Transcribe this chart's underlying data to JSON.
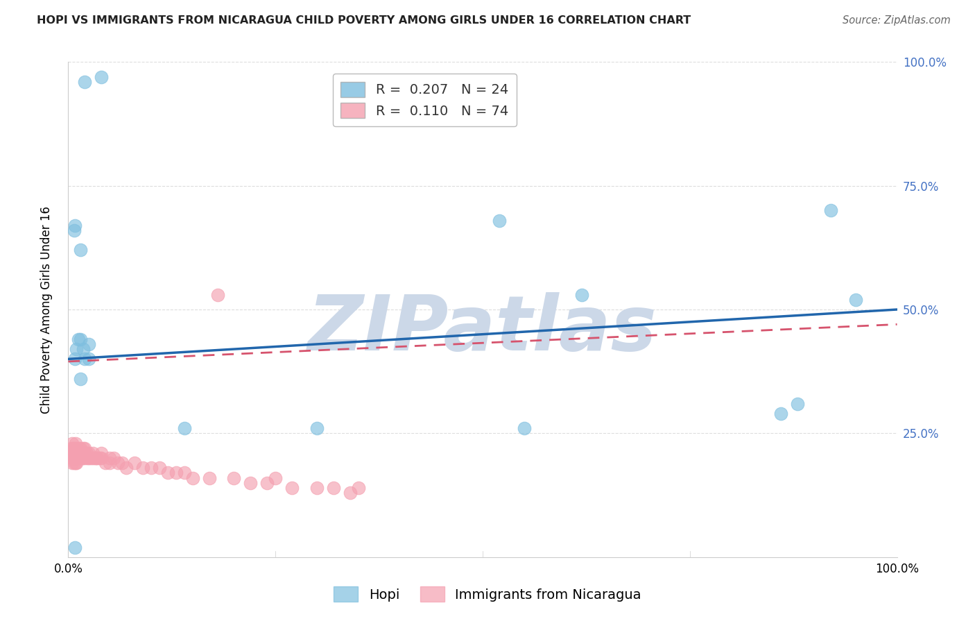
{
  "title": "HOPI VS IMMIGRANTS FROM NICARAGUA CHILD POVERTY AMONG GIRLS UNDER 16 CORRELATION CHART",
  "source": "Source: ZipAtlas.com",
  "ylabel": "Child Poverty Among Girls Under 16",
  "xlim": [
    0,
    1
  ],
  "ylim": [
    0,
    1
  ],
  "legend1_r": "0.207",
  "legend1_n": "24",
  "legend2_r": "0.110",
  "legend2_n": "74",
  "legend1_label": "Hopi",
  "legend2_label": "Immigrants from Nicaragua",
  "hopi_color": "#7fbfdf",
  "nicaragua_color": "#f4a0b0",
  "hopi_line_color": "#2166ac",
  "nicaragua_line_color": "#d6536d",
  "watermark": "ZIPatlas",
  "watermark_color": "#ccd8e8",
  "background_color": "#ffffff",
  "grid_color": "#dddddd",
  "hopi_x": [
    0.02,
    0.04,
    0.01,
    0.015,
    0.02,
    0.025,
    0.015,
    0.008,
    0.025,
    0.14,
    0.018,
    0.008,
    0.015,
    0.3,
    0.007,
    0.55,
    0.52,
    0.62,
    0.86,
    0.88,
    0.92,
    0.95,
    0.008,
    0.012
  ],
  "hopi_y": [
    0.96,
    0.97,
    0.42,
    0.36,
    0.4,
    0.43,
    0.44,
    0.02,
    0.4,
    0.26,
    0.42,
    0.67,
    0.62,
    0.26,
    0.66,
    0.26,
    0.68,
    0.53,
    0.29,
    0.31,
    0.7,
    0.52,
    0.4,
    0.44
  ],
  "nic_x": [
    0.003,
    0.004,
    0.004,
    0.005,
    0.005,
    0.005,
    0.006,
    0.006,
    0.007,
    0.007,
    0.008,
    0.008,
    0.008,
    0.009,
    0.009,
    0.009,
    0.01,
    0.01,
    0.01,
    0.01,
    0.012,
    0.012,
    0.013,
    0.013,
    0.014,
    0.015,
    0.015,
    0.016,
    0.016,
    0.017,
    0.018,
    0.018,
    0.02,
    0.02,
    0.02,
    0.022,
    0.023,
    0.025,
    0.025,
    0.027,
    0.03,
    0.03,
    0.032,
    0.034,
    0.035,
    0.038,
    0.04,
    0.04,
    0.045,
    0.05,
    0.05,
    0.055,
    0.06,
    0.065,
    0.07,
    0.08,
    0.09,
    0.1,
    0.11,
    0.12,
    0.13,
    0.14,
    0.15,
    0.17,
    0.18,
    0.2,
    0.22,
    0.24,
    0.25,
    0.27,
    0.3,
    0.32,
    0.34,
    0.35
  ],
  "nic_y": [
    0.21,
    0.2,
    0.22,
    0.19,
    0.21,
    0.23,
    0.2,
    0.22,
    0.19,
    0.21,
    0.2,
    0.22,
    0.21,
    0.19,
    0.21,
    0.23,
    0.19,
    0.21,
    0.22,
    0.2,
    0.21,
    0.2,
    0.21,
    0.22,
    0.2,
    0.21,
    0.22,
    0.2,
    0.21,
    0.2,
    0.21,
    0.22,
    0.2,
    0.21,
    0.22,
    0.21,
    0.2,
    0.2,
    0.21,
    0.2,
    0.2,
    0.21,
    0.2,
    0.2,
    0.2,
    0.2,
    0.2,
    0.21,
    0.19,
    0.19,
    0.2,
    0.2,
    0.19,
    0.19,
    0.18,
    0.19,
    0.18,
    0.18,
    0.18,
    0.17,
    0.17,
    0.17,
    0.16,
    0.16,
    0.53,
    0.16,
    0.15,
    0.15,
    0.16,
    0.14,
    0.14,
    0.14,
    0.13,
    0.14
  ],
  "hopi_trendline": [
    0.4,
    0.5
  ],
  "nic_trendline": [
    0.395,
    0.47
  ],
  "right_tick_color": "#4472c4",
  "title_fontsize": 11.5,
  "axis_fontsize": 12,
  "legend_fontsize": 14
}
